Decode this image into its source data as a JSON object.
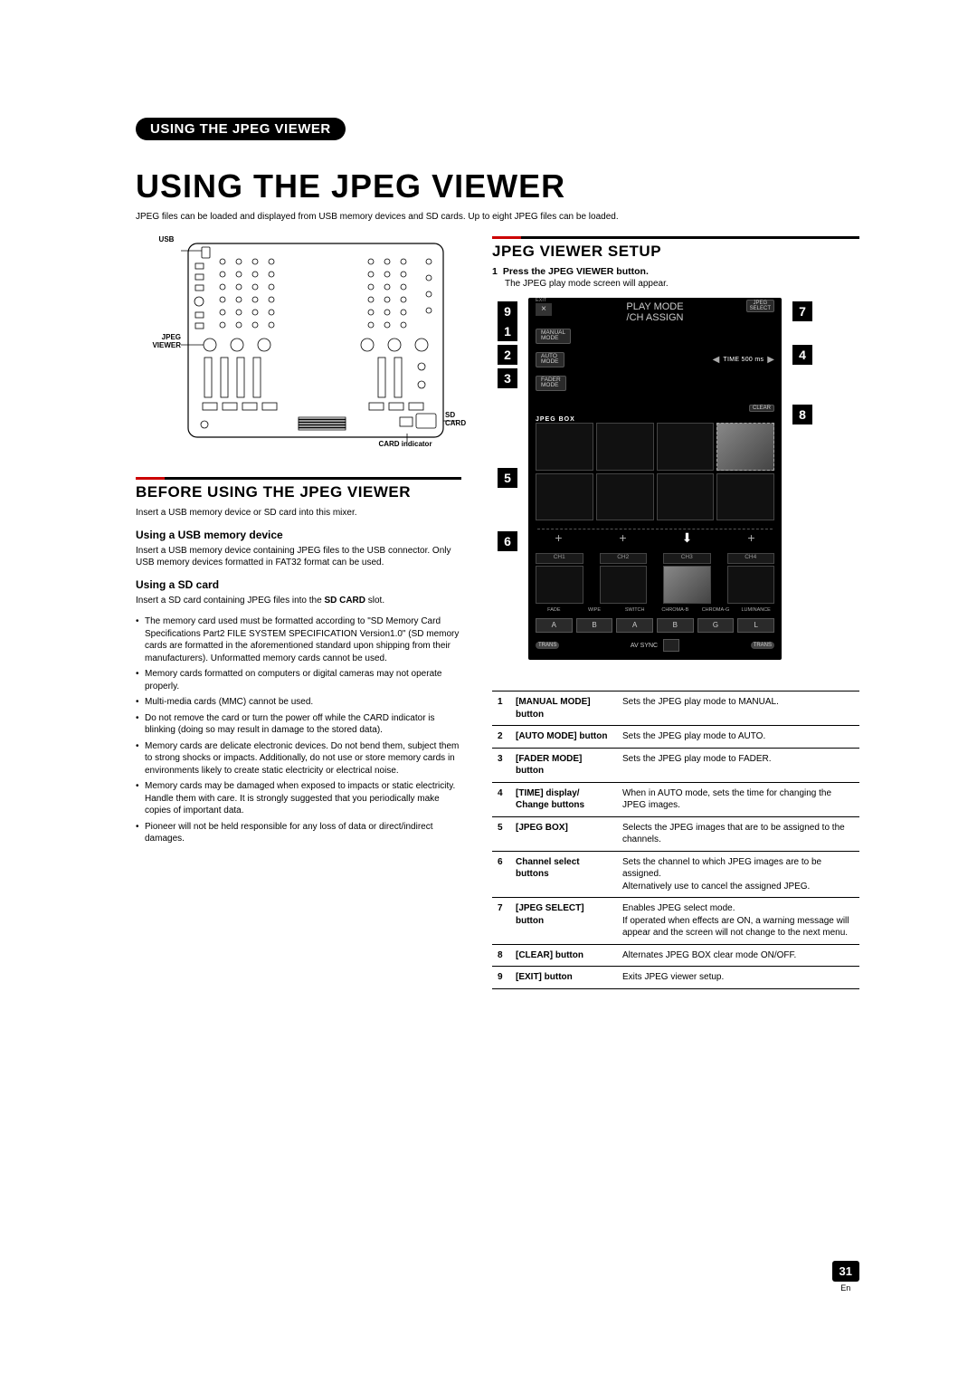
{
  "page": {
    "pill": "USING THE JPEG VIEWER",
    "title": "USING THE JPEG VIEWER",
    "intro": "JPEG files can be loaded and displayed from USB memory devices and SD cards. Up to eight JPEG files can be loaded.",
    "number": "31",
    "lang": "En"
  },
  "diagram": {
    "usb": "USB",
    "jpeg_viewer": "JPEG\nVIEWER",
    "sd_card": "SD\nCARD",
    "card_indicator": "CARD indicator"
  },
  "left": {
    "heading": "BEFORE USING THE JPEG VIEWER",
    "intro": "Insert a USB memory device or SD card into this mixer.",
    "usb_h": "Using a USB memory device",
    "usb_p": "Insert a USB memory device containing JPEG files to the USB connector. Only USB memory devices formatted in FAT32 format can be used.",
    "sd_h": "Using a SD card",
    "sd_intro": "Insert a SD card containing JPEG files into the SD CARD slot.",
    "sd_intro_bold": "SD CARD",
    "bullets": [
      "The memory card used must be formatted according to \"SD Memory Card Specifications Part2 FILE SYSTEM SPECIFICATION Version1.0\" (SD memory cards are formatted in the aforementioned standard upon shipping from their manufacturers). Unformatted memory cards cannot be used.",
      "Memory cards formatted on computers or digital cameras may not operate properly.",
      "Multi-media cards (MMC) cannot be used.",
      "Do not remove the card or turn the power off while the CARD indicator is blinking (doing so may result in damage to the stored data).",
      "Memory cards are delicate electronic devices. Do not bend them, subject them to strong shocks or impacts. Additionally, do not use or store memory cards in environments likely to create static electricity or electrical noise.",
      "Memory cards may be damaged when exposed to impacts or static electricity. Handle them with care. It is strongly suggested that you periodically make copies of important data.",
      "Pioneer will not be held responsible for any loss of data or direct/indirect damages."
    ]
  },
  "right": {
    "heading": "JPEG VIEWER SETUP",
    "step1": "Press the JPEG VIEWER button.",
    "step1_desc": "The JPEG play mode screen will appear.",
    "screen": {
      "title_l1": "PLAY MODE",
      "title_l2": "/CH ASSIGN",
      "exit": "EXIT",
      "jpeg_select": "JPEG\nSELECT",
      "manual": "MANUAL\nMODE",
      "auto": "AUTO\nMODE",
      "fader": "FADER\nMODE",
      "time": "TIME  500 ms",
      "clear": "CLEAR",
      "jpeg_box": "JPEG BOX",
      "ch": [
        "CH1",
        "CH2",
        "CH3",
        "CH4"
      ],
      "trans": [
        "FADE",
        "WIPE",
        "SWITCH",
        "CHROMA-B",
        "CHROMA-G",
        "LUMINANCE"
      ],
      "trans_icon": [
        "A",
        "B",
        "A",
        "B",
        "G",
        "L"
      ],
      "avsync": "AV SYNC",
      "trans_badge": "TRANS"
    },
    "callouts_left": {
      "9": 4,
      "1": 26,
      "2": 52,
      "3": 78,
      "5": 188,
      "6": 258
    },
    "callouts_right": {
      "7": 4,
      "4": 52,
      "8": 118
    },
    "table": [
      {
        "n": "1",
        "name": "[MANUAL MODE] button",
        "desc": "Sets the JPEG play mode to MANUAL."
      },
      {
        "n": "2",
        "name": "[AUTO MODE] button",
        "desc": "Sets the JPEG play mode to AUTO."
      },
      {
        "n": "3",
        "name": "[FADER MODE] button",
        "desc": "Sets the JPEG play mode to FADER."
      },
      {
        "n": "4",
        "name": "[TIME] display/ Change buttons",
        "desc": "When in AUTO mode, sets the time for changing the JPEG images."
      },
      {
        "n": "5",
        "name": "[JPEG BOX]",
        "desc": "Selects the JPEG images that are to be assigned to the channels."
      },
      {
        "n": "6",
        "name": "Channel select buttons",
        "desc": "Sets the channel to which JPEG images are to be assigned.\nAlternatively use to cancel the assigned JPEG."
      },
      {
        "n": "7",
        "name": "[JPEG SELECT] button",
        "desc": "Enables JPEG select mode.\nIf operated when effects are ON, a warning message will appear and the screen will not change to the next menu."
      },
      {
        "n": "8",
        "name": "[CLEAR] button",
        "desc": "Alternates JPEG BOX clear mode ON/OFF."
      },
      {
        "n": "9",
        "name": "[EXIT] button",
        "desc": "Exits JPEG viewer setup."
      }
    ]
  },
  "colors": {
    "accent": "#c00000",
    "black": "#000000"
  }
}
